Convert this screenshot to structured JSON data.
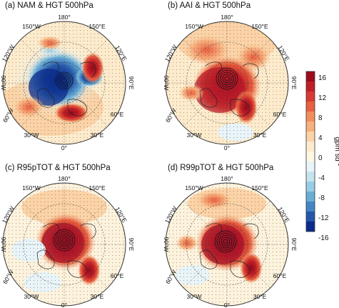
{
  "panels": [
    {
      "title": "(a) NAM & HGT 500hPa"
    },
    {
      "title": "(b) AAI & HGT 500hPa"
    },
    {
      "title": "(c) R95pTOT & HGT 500hPa"
    },
    {
      "title": "(d) R99pTOT & HGT 500hPa"
    }
  ],
  "longitude_labels": [
    "180°",
    "150°E",
    "120°E",
    "90°E",
    "60°E",
    "30°E",
    "0°",
    "30°W",
    "60°W",
    "90°W",
    "120°W",
    "150°W"
  ],
  "colorbar": {
    "label_main": "gpm sd",
    "label_sup": "-1",
    "ticks": [
      "16",
      "12",
      "8",
      "4",
      "0",
      "-4",
      "-8",
      "-12",
      "-16"
    ],
    "colors_top_to_bottom": [
      "#9e0a1e",
      "#c01e27",
      "#d83a33",
      "#e8603f",
      "#f28c5b",
      "#f8b07e",
      "#fbd3a6",
      "#fdebcc",
      "#fdf7e4",
      "#e8f4f8",
      "#c5e4ef",
      "#98cde6",
      "#6aaed6",
      "#4286c4",
      "#2457aa",
      "#0a2a8c"
    ]
  }
}
